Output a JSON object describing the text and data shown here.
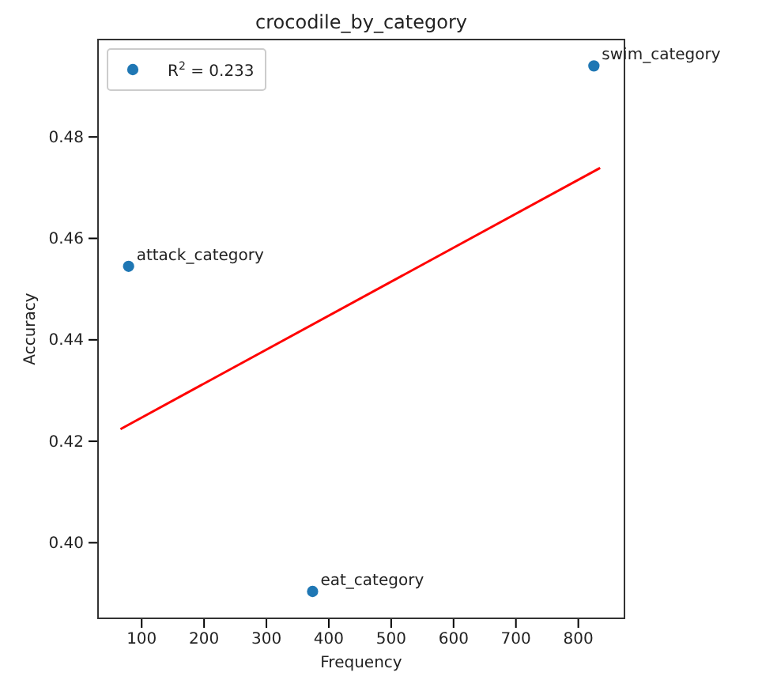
{
  "chart_data": {
    "type": "scatter",
    "title": "crocodile_by_category",
    "xlabel": "Frequency",
    "ylabel": "Accuracy",
    "xlim": [
      30,
      874
    ],
    "ylim": [
      0.3851,
      0.4992
    ],
    "xticks": [
      100,
      200,
      300,
      400,
      500,
      600,
      700,
      800
    ],
    "yticks": [
      {
        "value": 0.4,
        "label": "0.40"
      },
      {
        "value": 0.42,
        "label": "0.42"
      },
      {
        "value": 0.44,
        "label": "0.44"
      },
      {
        "value": 0.46,
        "label": "0.46"
      },
      {
        "value": 0.48,
        "label": "0.48"
      }
    ],
    "series": [
      {
        "name": "R$^{2}$ = 0.233",
        "color": "#1f77b4",
        "marker": "circle",
        "x": [
          79,
          825,
          374
        ],
        "values": [
          0.4545,
          0.494,
          0.3904
        ]
      },
      {
        "type": "line",
        "color": "#ff0000",
        "line_style": "solid",
        "x": [
          66,
          835
        ],
        "values": [
          0.4224,
          0.4739
        ]
      }
    ],
    "annotations": [
      {
        "text": "attack_category",
        "x": 79,
        "y": 0.4545
      },
      {
        "text": "swim_category",
        "x": 825,
        "y": 0.494
      },
      {
        "text": "eat_category",
        "x": 374,
        "y": 0.3904
      }
    ],
    "legend": "top left",
    "grid": false
  }
}
